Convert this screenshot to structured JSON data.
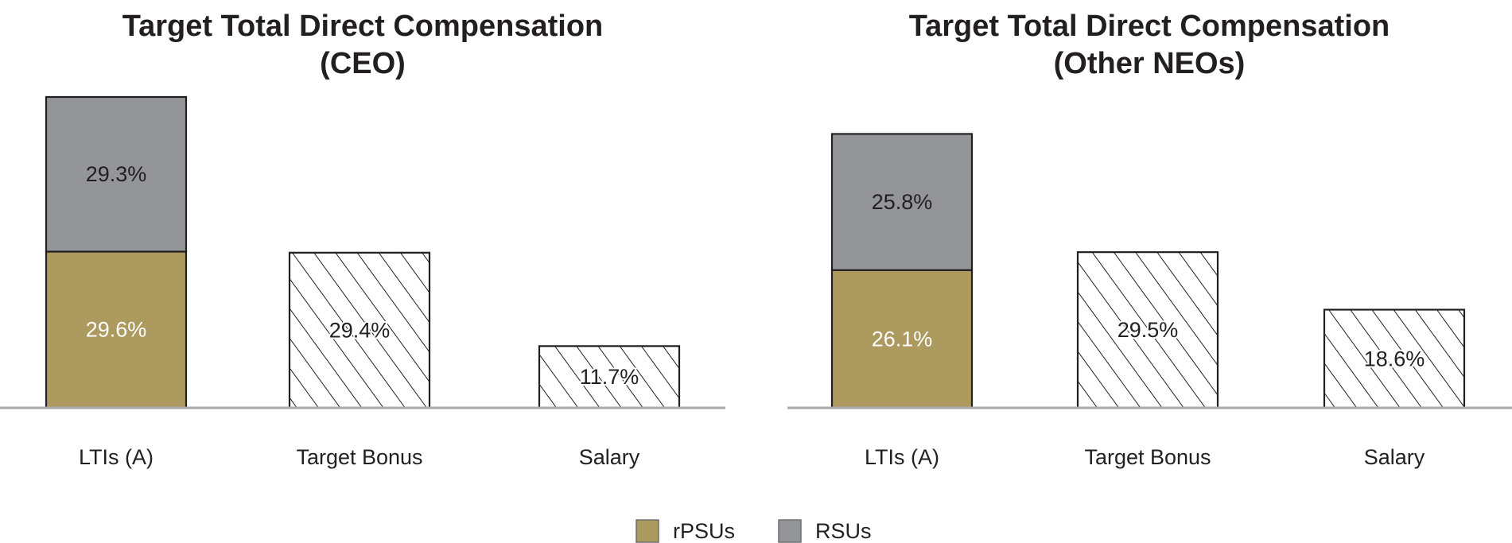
{
  "colors": {
    "rpsu": "#ad9a5f",
    "rsu": "#939598",
    "outline": "#231f20",
    "baseline": "#a7a9ac",
    "hatch": "#231f20",
    "label_dark": "#231f20",
    "label_light": "#ffffff"
  },
  "legend": [
    {
      "key": "rpsu",
      "label": "rPSUs",
      "color": "#ad9a5f"
    },
    {
      "key": "rsu",
      "label": "RSUs",
      "color": "#939598"
    }
  ],
  "chart_data": [
    {
      "type": "bar",
      "stacked": true,
      "title": [
        "Target Total Direct Compensation",
        "(CEO)"
      ],
      "categories": [
        "LTIs (A)",
        "Target Bonus",
        "Salary"
      ],
      "bars": [
        {
          "category": "LTIs (A)",
          "segments": [
            {
              "series": "rPSUs",
              "value": 29.6,
              "label": "29.6%",
              "fill": "rpsu"
            },
            {
              "series": "RSUs",
              "value": 29.3,
              "label": "29.3%",
              "fill": "rsu"
            }
          ]
        },
        {
          "category": "Target Bonus",
          "segments": [
            {
              "value": 29.4,
              "label": "29.4%",
              "fill": "hatch"
            }
          ]
        },
        {
          "category": "Salary",
          "segments": [
            {
              "value": 11.7,
              "label": "11.7%",
              "fill": "hatch"
            }
          ]
        }
      ],
      "ylim": [
        0,
        59.5
      ],
      "grid": false,
      "axes_visible": false
    },
    {
      "type": "bar",
      "stacked": true,
      "title": [
        "Target Total Direct Compensation",
        "(Other NEOs)"
      ],
      "categories": [
        "LTIs (A)",
        "Target Bonus",
        "Salary"
      ],
      "bars": [
        {
          "category": "LTIs (A)",
          "segments": [
            {
              "series": "rPSUs",
              "value": 26.1,
              "label": "26.1%",
              "fill": "rpsu"
            },
            {
              "series": "RSUs",
              "value": 25.8,
              "label": "25.8%",
              "fill": "rsu"
            }
          ]
        },
        {
          "category": "Target Bonus",
          "segments": [
            {
              "value": 29.5,
              "label": "29.5%",
              "fill": "hatch"
            }
          ]
        },
        {
          "category": "Salary",
          "segments": [
            {
              "value": 18.6,
              "label": "18.6%",
              "fill": "hatch"
            }
          ]
        }
      ],
      "ylim": [
        0,
        59.5
      ],
      "grid": false,
      "axes_visible": false
    }
  ]
}
